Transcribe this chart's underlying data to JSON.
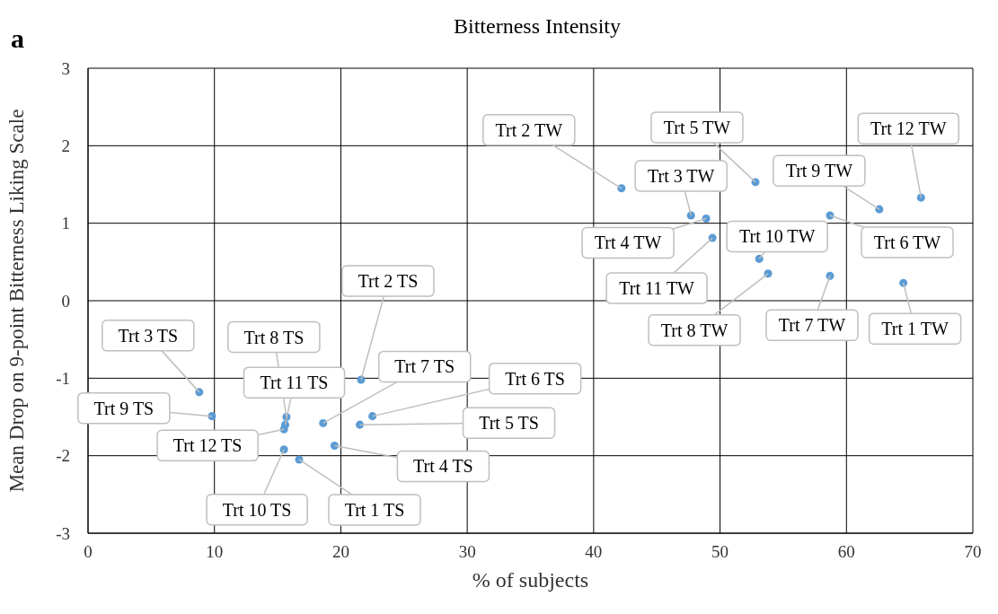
{
  "chart_data": {
    "type": "scatter",
    "title": "Bitterness Intensity",
    "xlabel": "% of subjects",
    "ylabel": "Mean Drop on 9-point Bitterness Liking Scale",
    "x": [
      42.2,
      52.8,
      65.9,
      62.6,
      58.7,
      47.7,
      48.9,
      49.4,
      53.1,
      53.8,
      58.7,
      64.5,
      8.8,
      9.8,
      21.6,
      15.7,
      15.6,
      18.6,
      22.5,
      21.5,
      19.5,
      15.5,
      15.5,
      16.7
    ],
    "values": [
      1.45,
      1.53,
      1.33,
      1.18,
      1.1,
      1.1,
      1.06,
      0.81,
      0.54,
      0.35,
      0.32,
      0.23,
      -1.18,
      -1.49,
      -1.02,
      -1.5,
      -1.6,
      -1.58,
      -1.49,
      -1.6,
      -1.87,
      -1.66,
      -1.92,
      -2.05
    ],
    "color": "#5b9bd5",
    "marker": "circle",
    "xlim": [
      0,
      70
    ],
    "xticks": [
      0,
      10,
      20,
      30,
      40,
      50,
      60,
      70
    ],
    "ylim": [
      -3,
      3
    ],
    "yticks": [
      -3,
      -2,
      -1,
      0,
      1,
      2,
      3
    ],
    "grid": true,
    "annotations": [
      "a",
      {
        "text": "Trt 2 TW",
        "x": 42.2,
        "y": 1.45
      },
      {
        "text": "Trt 5 TW",
        "x": 52.8,
        "y": 1.53
      },
      {
        "text": "Trt 12 TW",
        "x": 65.9,
        "y": 1.33
      },
      {
        "text": "Trt 9 TW",
        "x": 62.6,
        "y": 1.18
      },
      {
        "text": "Trt 6 TW",
        "x": 58.7,
        "y": 1.1
      },
      {
        "text": "Trt 3 TW",
        "x": 47.7,
        "y": 1.1
      },
      {
        "text": "Trt 4 TW",
        "x": 48.9,
        "y": 1.06
      },
      {
        "text": "Trt 11 TW",
        "x": 49.4,
        "y": 0.81
      },
      {
        "text": "Trt 10 TW",
        "x": 53.1,
        "y": 0.54
      },
      {
        "text": "Trt 8 TW",
        "x": 53.8,
        "y": 0.35
      },
      {
        "text": "Trt 7 TW",
        "x": 58.7,
        "y": 0.32
      },
      {
        "text": "Trt 1 TW",
        "x": 64.5,
        "y": 0.23
      },
      {
        "text": "Trt 3 TS",
        "x": 8.8,
        "y": -1.18
      },
      {
        "text": "Trt 9 TS",
        "x": 9.8,
        "y": -1.49
      },
      {
        "text": "Trt 2 TS",
        "x": 21.6,
        "y": -1.02
      },
      {
        "text": "Trt 8 TS",
        "x": 15.7,
        "y": -1.5
      },
      {
        "text": "Trt 11 TS",
        "x": 15.6,
        "y": -1.6
      },
      {
        "text": "Trt 7 TS",
        "x": 18.6,
        "y": -1.58
      },
      {
        "text": "Trt 6 TS",
        "x": 22.5,
        "y": -1.49
      },
      {
        "text": "Trt 5 TS",
        "x": 21.5,
        "y": -1.6
      },
      {
        "text": "Trt 4 TS",
        "x": 19.5,
        "y": -1.87
      },
      {
        "text": "Trt 12 TS",
        "x": 15.5,
        "y": -1.66
      },
      {
        "text": "Trt 10 TS",
        "x": 15.5,
        "y": -1.92
      },
      {
        "text": "Trt 1 TS",
        "x": 16.7,
        "y": -2.05
      }
    ]
  }
}
